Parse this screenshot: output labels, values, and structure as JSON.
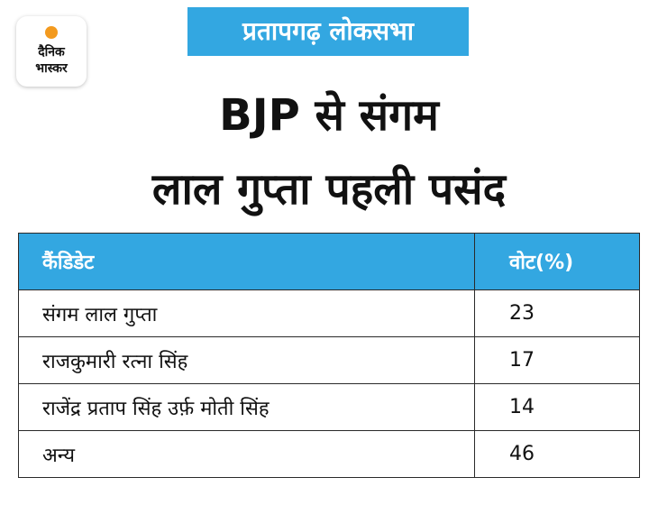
{
  "logo": {
    "line1": "दैनिक",
    "line2": "भास्कर"
  },
  "tag": "प्रतापगढ़ लोकसभा",
  "headline": {
    "line1": "BJP से संगम",
    "line2": "लाल गुप्ता पहली पसंद"
  },
  "table": {
    "headers": [
      "कैंडिडेट",
      "वोट(%)"
    ],
    "rows": [
      [
        "संगम लाल गुप्ता",
        "23"
      ],
      [
        "राजकुमारी रत्ना सिंह",
        "17"
      ],
      [
        "राजेंद्र प्रताप सिंह उर्फ़ मोती सिंह",
        "14"
      ],
      [
        "अन्य",
        "46"
      ]
    ]
  }
}
